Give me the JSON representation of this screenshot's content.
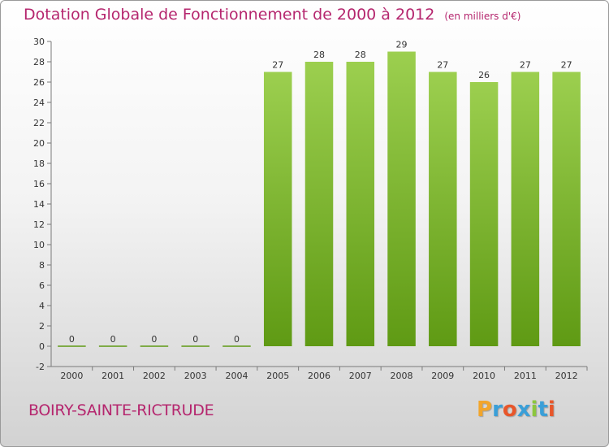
{
  "header": {
    "title": "Dotation Globale de Fonctionnement de 2000 à 2012",
    "unit": "(en milliers d'€)"
  },
  "footer": {
    "commune": "BOIRY-SAINTE-RICTRUDE",
    "logo": "Proxiti",
    "logo_colors": [
      "#f2a52b",
      "#3a9fd8",
      "#e8562a",
      "#3a9fd8",
      "#8cc63e",
      "#3a9fd8",
      "#e8562a"
    ]
  },
  "colors": {
    "bar_light": "#9ccf4f",
    "bar_dark": "#5f9a14",
    "title": "#b5266e"
  },
  "chart_data": {
    "type": "bar",
    "categories": [
      "2000",
      "2001",
      "2002",
      "2003",
      "2004",
      "2005",
      "2006",
      "2007",
      "2008",
      "2009",
      "2010",
      "2011",
      "2012"
    ],
    "values": [
      0,
      0,
      0,
      0,
      0,
      27,
      28,
      28,
      29,
      27,
      26,
      27,
      27
    ],
    "value_labels": [
      "0",
      "0",
      "0",
      "0",
      "0",
      "27",
      "28",
      "28",
      "29",
      "27",
      "26",
      "27",
      "27"
    ],
    "title": "Dotation Globale de Fonctionnement de 2000 à 2012",
    "xlabel": "",
    "ylabel": "",
    "ylim": [
      -2,
      30
    ],
    "yticks": [
      -2,
      0,
      2,
      4,
      6,
      8,
      10,
      12,
      14,
      16,
      18,
      20,
      22,
      24,
      26,
      28,
      30
    ],
    "grid": false,
    "legend": "none"
  }
}
